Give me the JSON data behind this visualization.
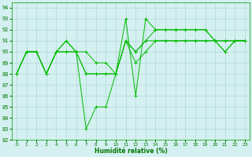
{
  "title": "",
  "xlabel": "Humidité relative (%)",
  "ylabel": "",
  "background_color": "#d4f0f0",
  "grid_color": "#b0d8d8",
  "line_color": "#00bb00",
  "marker": "+",
  "xlim": [
    -0.5,
    23.5
  ],
  "ylim": [
    82,
    94.5
  ],
  "yticks": [
    82,
    83,
    84,
    85,
    86,
    87,
    88,
    89,
    90,
    91,
    92,
    93,
    94
  ],
  "xticks": [
    0,
    1,
    2,
    3,
    4,
    5,
    6,
    7,
    8,
    9,
    10,
    11,
    12,
    13,
    14,
    15,
    16,
    17,
    18,
    19,
    20,
    21,
    22,
    23
  ],
  "series": [
    [
      88,
      90,
      90,
      88,
      90,
      91,
      90,
      83,
      85,
      85,
      88,
      93,
      86,
      93,
      92,
      92,
      92,
      92,
      92,
      92,
      91,
      91,
      91,
      91
    ],
    [
      88,
      90,
      90,
      88,
      90,
      90,
      90,
      88,
      88,
      88,
      88,
      91,
      89,
      90,
      91,
      91,
      91,
      91,
      91,
      91,
      91,
      90,
      91,
      91
    ],
    [
      88,
      90,
      90,
      88,
      90,
      91,
      90,
      88,
      88,
      88,
      88,
      91,
      90,
      91,
      92,
      92,
      92,
      92,
      92,
      92,
      91,
      90,
      91,
      91
    ],
    [
      88,
      90,
      90,
      88,
      90,
      90,
      90,
      90,
      89,
      89,
      88,
      91,
      90,
      91,
      91,
      91,
      91,
      91,
      91,
      91,
      91,
      91,
      91,
      91
    ]
  ]
}
